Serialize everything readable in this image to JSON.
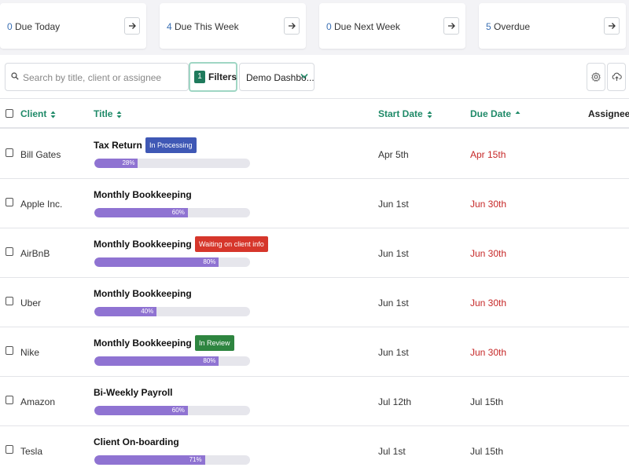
{
  "summary_cards": [
    {
      "count": "0",
      "label": "Due Today"
    },
    {
      "count": "4",
      "label": "Due This Week"
    },
    {
      "count": "0",
      "label": "Due Next Week"
    },
    {
      "count": "5",
      "label": "Overdue"
    }
  ],
  "toolbar": {
    "search_placeholder": "Search by title, client or assignee",
    "filters_count": "1",
    "filters_label": "Filters",
    "dashboard_select": "Demo Dashbo..."
  },
  "table": {
    "headers": {
      "client": "Client",
      "title": "Title",
      "start_date": "Start Date",
      "due_date": "Due Date",
      "assignees": "Assignees"
    },
    "rows": [
      {
        "client": "Bill Gates",
        "title": "Tax Return",
        "status": "In Processing",
        "status_color": "#3f58b5",
        "progress": 28,
        "progress_label": "28%",
        "start": "Apr 5th",
        "due": "Apr 15th",
        "overdue": true
      },
      {
        "client": "Apple Inc.",
        "title": "Monthly Bookkeeping",
        "status": "",
        "status_color": "",
        "progress": 60,
        "progress_label": "60%",
        "start": "Jun 1st",
        "due": "Jun 30th",
        "overdue": true
      },
      {
        "client": "AirBnB",
        "title": "Monthly Bookkeeping",
        "status": "Waiting on client info",
        "status_color": "#d6362b",
        "progress": 80,
        "progress_label": "80%",
        "start": "Jun 1st",
        "due": "Jun 30th",
        "overdue": true
      },
      {
        "client": "Uber",
        "title": "Monthly Bookkeeping",
        "status": "",
        "status_color": "",
        "progress": 40,
        "progress_label": "40%",
        "start": "Jun 1st",
        "due": "Jun 30th",
        "overdue": true
      },
      {
        "client": "Nike",
        "title": "Monthly Bookkeeping",
        "status": "In Review",
        "status_color": "#2e8540",
        "progress": 80,
        "progress_label": "80%",
        "start": "Jun 1st",
        "due": "Jun 30th",
        "overdue": true
      },
      {
        "client": "Amazon",
        "title": "Bi-Weekly Payroll",
        "status": "",
        "status_color": "",
        "progress": 60,
        "progress_label": "60%",
        "start": "Jul 12th",
        "due": "Jul 15th",
        "overdue": false
      },
      {
        "client": "Tesla",
        "title": "Client On-boarding",
        "status": "",
        "status_color": "",
        "progress": 71,
        "progress_label": "71%",
        "start": "Jul 1st",
        "due": "Jul 15th",
        "overdue": false
      }
    ]
  },
  "colors": {
    "accent_green": "#1f8a68",
    "overdue_red": "#c62828",
    "progress_purple": "#8f73d2",
    "count_blue": "#3a6fb3"
  }
}
